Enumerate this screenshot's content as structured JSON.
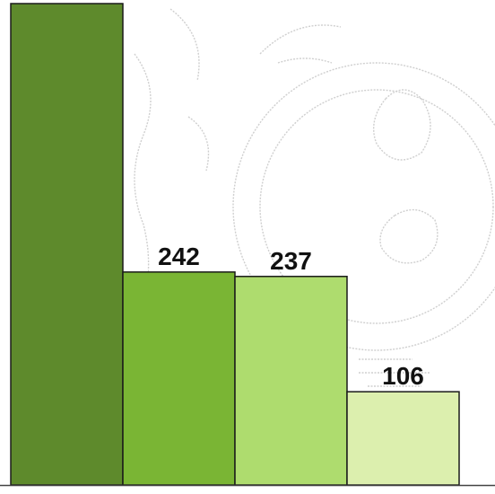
{
  "chart_data": {
    "type": "bar",
    "title": "",
    "xlabel": "",
    "ylabel": "",
    "categories": [
      "",
      "",
      "",
      ""
    ],
    "values": [
      547,
      242,
      237,
      106
    ],
    "data_labels": [
      "",
      "242",
      "237",
      "106"
    ],
    "bar_colors": [
      "#5e8a2c",
      "#7ab534",
      "#aedc6e",
      "#dcefae"
    ],
    "ylim": [
      0,
      547
    ],
    "grid": false,
    "legend": "none"
  },
  "colors": {
    "background": "#ffffff",
    "bar_outline": "#1a1a1a",
    "baseline": "#444444",
    "watermark": "#cfcfcf"
  }
}
